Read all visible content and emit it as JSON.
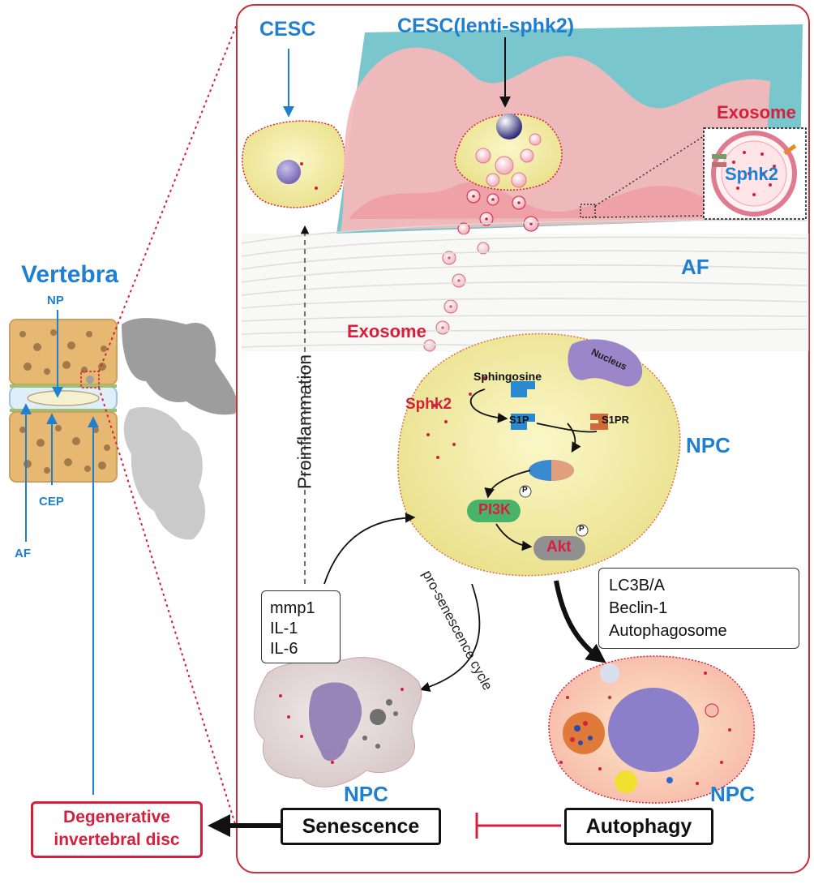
{
  "left_panel": {
    "title": "Vertebra",
    "labels": {
      "np": "NP",
      "cep": "CEP",
      "af": "AF"
    },
    "outcome": {
      "line1": "Degenerative",
      "line2": "invertebral disc"
    }
  },
  "main_panel": {
    "cesc": "CESC",
    "cesc_lenti": "CESC(lenti-sphk2)",
    "exosome_top": "Exosome",
    "sphk2_inset": "Sphk2",
    "af": "AF",
    "exosome_mid": "Exosome",
    "proinflammation": "Proinflammation",
    "npc_main": "NPC",
    "npc_senescent": "NPC",
    "npc_autophagic": "NPC",
    "pathway": {
      "sphingosine": "Sphingosine",
      "nucleus": "Nucleus",
      "sphk2": "Sphk2",
      "s1p": "S1P",
      "s1pr": "S1PR",
      "pi3k": "PI3K",
      "akt": "Akt",
      "phospho": "P"
    },
    "cycle_label": "pro-senescence cycle",
    "senescence_markers": [
      "mmp1",
      "IL-1",
      "IL-6"
    ],
    "autophagy_markers": [
      "LC3B/A",
      "Beclin-1",
      "Autophagosome"
    ],
    "senescence": "Senescence",
    "autophagy": "Autophagy"
  },
  "colors": {
    "blue_label": "#1f7fd0",
    "red_label": "#d4203c",
    "panel_border": "#c8303a",
    "cell_fill": "#f3eda0"
  }
}
